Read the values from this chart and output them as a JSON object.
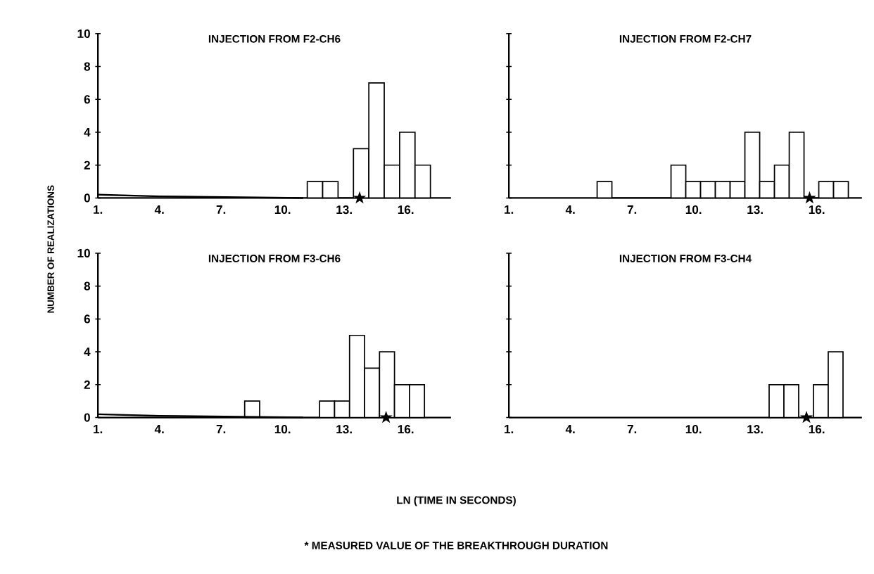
{
  "chart_data": [
    {
      "type": "histogram",
      "title": "INJECTION FROM F2-CH6",
      "ylabel": "NUMBER OF REALIZATIONS",
      "xlim": [
        1,
        18.2
      ],
      "ylim": [
        0,
        10
      ],
      "xticks": [
        {
          "value": 1,
          "label": "1."
        },
        {
          "value": 4,
          "label": "4."
        },
        {
          "value": 7,
          "label": "7."
        },
        {
          "value": 10,
          "label": "10."
        },
        {
          "value": 13,
          "label": "13."
        },
        {
          "value": 16,
          "label": "16."
        }
      ],
      "yticks": [
        0,
        2,
        4,
        6,
        8,
        10
      ],
      "series": [
        {
          "color": "#ffffff",
          "bins": [
            11.2,
            11.95,
            12.7,
            13.45,
            14.2,
            14.95,
            15.7,
            16.45,
            17.2
          ],
          "values": [
            1,
            1,
            0,
            3,
            7,
            2,
            4,
            2
          ]
        },
        {
          "type": "line",
          "color": "#000000",
          "x": [
            1,
            4,
            11
          ],
          "values": [
            0.2,
            0.1,
            0
          ]
        },
        {
          "type": "scatter",
          "marker": "star",
          "color": "#000000",
          "x": [
            13.75
          ],
          "values": [
            0
          ]
        }
      ]
    },
    {
      "type": "histogram",
      "title": "INJECTION FROM F2-CH7",
      "tick_labels": "x",
      "xlim": [
        1,
        18.2
      ],
      "ylim": [
        0,
        10
      ],
      "xticks": [
        {
          "value": 1,
          "label": "1."
        },
        {
          "value": 4,
          "label": "4."
        },
        {
          "value": 7,
          "label": "7."
        },
        {
          "value": 10,
          "label": "10."
        },
        {
          "value": 13,
          "label": "13."
        },
        {
          "value": 16,
          "label": "16."
        }
      ],
      "yticks": [
        0,
        2,
        4,
        6,
        8,
        10
      ],
      "series": [
        {
          "color": "#ffffff",
          "bins": [
            5.3,
            6.02,
            6.74,
            7.46,
            8.18,
            8.9,
            9.62,
            10.34,
            11.06,
            11.78,
            12.5,
            13.22,
            13.94,
            14.66,
            15.38,
            16.1,
            16.82,
            17.54
          ],
          "values": [
            1,
            0,
            0,
            0,
            0,
            2,
            1,
            1,
            1,
            1,
            4,
            1,
            2,
            4,
            0,
            1,
            1
          ]
        },
        {
          "type": "scatter",
          "marker": "star",
          "color": "#000000",
          "x": [
            15.65
          ],
          "values": [
            0
          ]
        }
      ]
    },
    {
      "type": "histogram",
      "title": "INJECTION FROM F3-CH6",
      "xlabel": "LN (TIME IN SECONDS)",
      "annotations": [
        "* MEASURED VALUE OF THE BREAKTHROUGH DURATION"
      ],
      "xlim": [
        1,
        18.2
      ],
      "ylim": [
        0,
        10
      ],
      "xticks": [
        {
          "value": 1,
          "label": "1."
        },
        {
          "value": 4,
          "label": "4."
        },
        {
          "value": 7,
          "label": "7."
        },
        {
          "value": 10,
          "label": "10."
        },
        {
          "value": 13,
          "label": "13."
        },
        {
          "value": 16,
          "label": "16."
        }
      ],
      "yticks": [
        0,
        2,
        4,
        6,
        8,
        10
      ],
      "series": [
        {
          "color": "#ffffff",
          "bins": [
            8.15,
            8.88,
            9.61,
            10.34,
            11.07,
            11.8,
            12.53,
            13.26,
            13.99,
            14.72,
            15.45,
            16.18,
            16.91
          ],
          "values": [
            1,
            0,
            0,
            0,
            0,
            1,
            1,
            5,
            3,
            4,
            2,
            2
          ]
        },
        {
          "type": "line",
          "color": "#000000",
          "x": [
            1,
            4,
            11
          ],
          "values": [
            0.2,
            0.1,
            0
          ]
        },
        {
          "type": "scatter",
          "marker": "star",
          "color": "#000000",
          "x": [
            15.04
          ],
          "values": [
            0
          ]
        }
      ]
    },
    {
      "type": "histogram",
      "title": "INJECTION FROM F3-CH4",
      "tick_labels": "x",
      "xlim": [
        1,
        18.2
      ],
      "ylim": [
        0,
        10
      ],
      "xticks": [
        {
          "value": 1,
          "label": "1."
        },
        {
          "value": 4,
          "label": "4."
        },
        {
          "value": 7,
          "label": "7."
        },
        {
          "value": 10,
          "label": "10."
        },
        {
          "value": 13,
          "label": "13."
        },
        {
          "value": 16,
          "label": "16."
        }
      ],
      "yticks": [
        0,
        2,
        4,
        6,
        8,
        10
      ],
      "series": [
        {
          "color": "#ffffff",
          "bins": [
            13.68,
            14.4,
            15.12,
            15.84,
            16.56,
            17.28
          ],
          "values": [
            2,
            2,
            0,
            2,
            4
          ]
        },
        {
          "type": "scatter",
          "marker": "star",
          "color": "#000000",
          "x": [
            15.5
          ],
          "values": [
            0
          ]
        }
      ]
    }
  ]
}
